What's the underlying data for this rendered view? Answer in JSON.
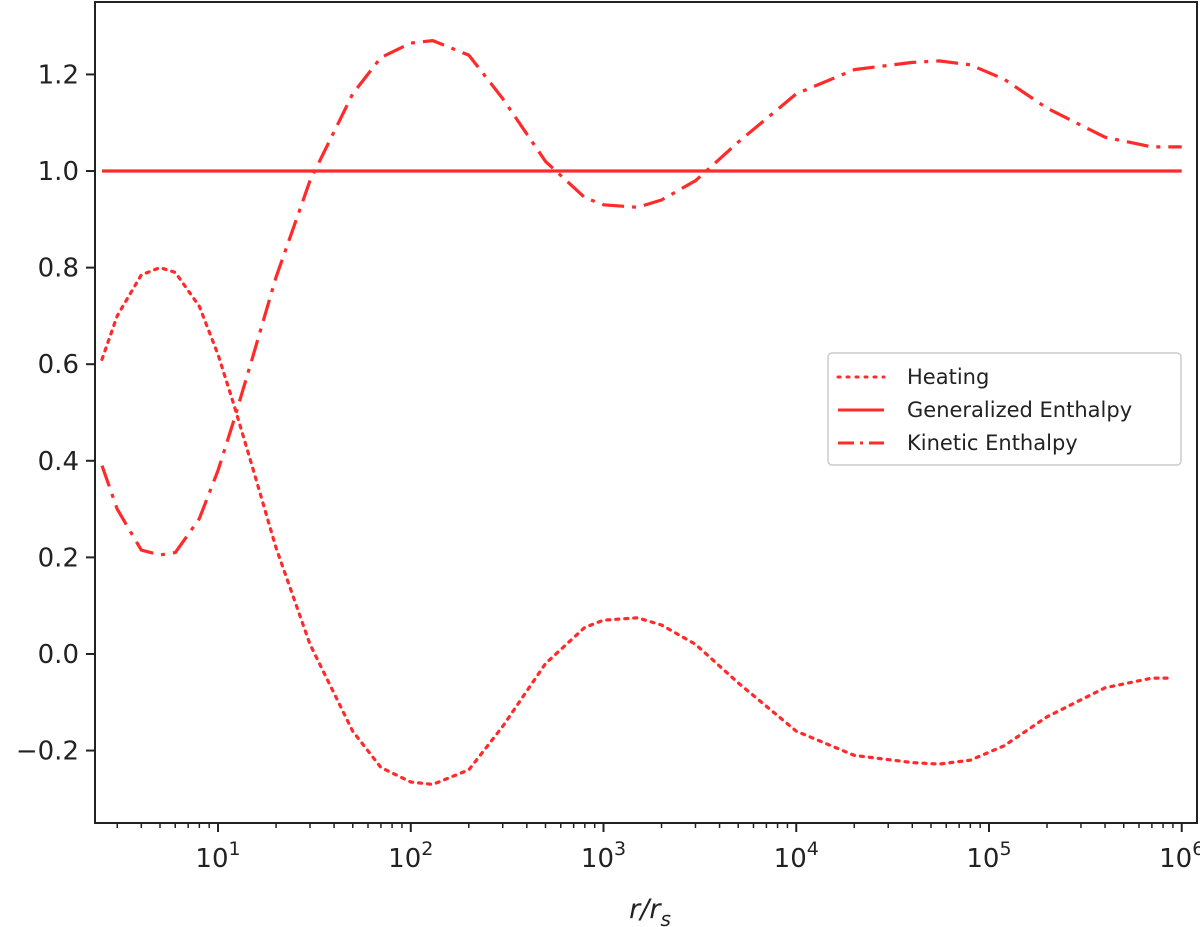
{
  "chart_data": {
    "type": "line",
    "x_scale": "log",
    "xlim": [
      2.3,
      1200000
    ],
    "ylim": [
      -0.35,
      1.35
    ],
    "x_ticks": [
      {
        "value": 10,
        "base": "10",
        "exp": "1"
      },
      {
        "value": 100,
        "base": "10",
        "exp": "2"
      },
      {
        "value": 1000,
        "base": "10",
        "exp": "3"
      },
      {
        "value": 10000,
        "base": "10",
        "exp": "4"
      },
      {
        "value": 100000,
        "base": "10",
        "exp": "5"
      },
      {
        "value": 1000000,
        "base": "10",
        "exp": "6"
      }
    ],
    "y_ticks": [
      {
        "value": -0.2,
        "label": "−0.2"
      },
      {
        "value": 0.0,
        "label": "0.0"
      },
      {
        "value": 0.2,
        "label": "0.2"
      },
      {
        "value": 0.4,
        "label": "0.4"
      },
      {
        "value": 0.6,
        "label": "0.6"
      },
      {
        "value": 0.8,
        "label": "0.8"
      },
      {
        "value": 1.0,
        "label": "1.0"
      },
      {
        "value": 1.2,
        "label": "1.2"
      }
    ],
    "xlabel": {
      "main": "r/r",
      "sub": "s"
    },
    "ylabel": "",
    "title": "",
    "grid": false,
    "legend_position": "center-right",
    "series": [
      {
        "name": "Heating",
        "style": "dotted",
        "color": "#ff2a2a",
        "x": [
          2.5,
          3,
          4,
          5,
          6,
          8,
          10,
          12,
          15,
          20,
          30,
          50,
          70,
          100,
          130,
          200,
          300,
          500,
          800,
          1000,
          1500,
          2000,
          3000,
          5000,
          10000,
          20000,
          40000,
          55000,
          80000,
          120000,
          200000,
          400000,
          700000,
          900000
        ],
        "y": [
          0.61,
          0.7,
          0.785,
          0.8,
          0.79,
          0.72,
          0.62,
          0.52,
          0.39,
          0.22,
          0.02,
          -0.16,
          -0.235,
          -0.265,
          -0.27,
          -0.24,
          -0.15,
          -0.02,
          0.055,
          0.07,
          0.075,
          0.06,
          0.02,
          -0.06,
          -0.16,
          -0.21,
          -0.225,
          -0.228,
          -0.22,
          -0.19,
          -0.13,
          -0.07,
          -0.05,
          -0.05
        ]
      },
      {
        "name": "Generalized Enthalpy",
        "style": "solid",
        "color": "#ff2a2a",
        "x": [
          2.5,
          1000000
        ],
        "y": [
          1.0,
          1.0
        ]
      },
      {
        "name": "Kinetic Enthalpy",
        "style": "dashdot",
        "color": "#ff2a2a",
        "x": [
          2.5,
          3,
          4,
          5,
          6,
          8,
          10,
          12,
          15,
          20,
          30,
          50,
          70,
          100,
          130,
          200,
          300,
          500,
          800,
          1000,
          1500,
          2000,
          3000,
          5000,
          10000,
          20000,
          40000,
          55000,
          80000,
          120000,
          200000,
          400000,
          700000,
          1000000
        ],
        "y": [
          0.39,
          0.3,
          0.215,
          0.205,
          0.21,
          0.28,
          0.38,
          0.48,
          0.61,
          0.78,
          0.98,
          1.16,
          1.235,
          1.265,
          1.27,
          1.24,
          1.15,
          1.02,
          0.945,
          0.93,
          0.925,
          0.94,
          0.98,
          1.06,
          1.16,
          1.21,
          1.225,
          1.228,
          1.22,
          1.19,
          1.13,
          1.07,
          1.05,
          1.05
        ]
      }
    ]
  }
}
